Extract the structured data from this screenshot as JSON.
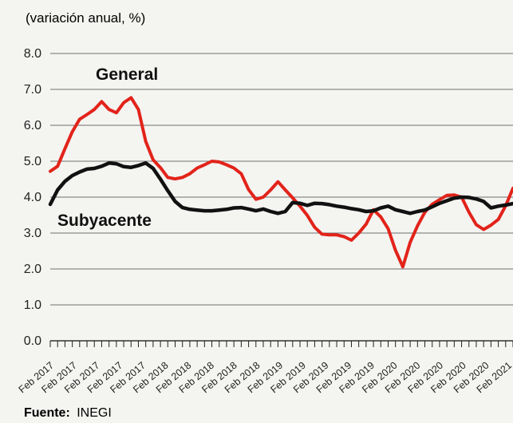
{
  "chart_data": {
    "type": "line",
    "subtitle": "(variación anual, %)",
    "ylim": [
      0,
      8
    ],
    "y_ticks": [
      "0.0",
      "1.0",
      "2.0",
      "3.0",
      "4.0",
      "5.0",
      "6.0",
      "7.0",
      "8.0"
    ],
    "grid": "horizontal",
    "x_tick_labels": [
      "Feb 2017",
      "Feb 2017",
      "Feb 2017",
      "Feb 2017",
      "Feb 2017",
      "Feb 2018",
      "Feb 2018",
      "Feb 2018",
      "Feb 2018",
      "Feb 2018",
      "Feb 2019",
      "Feb 2019",
      "Feb 2019",
      "Feb 2019",
      "Feb 2019",
      "Feb 2020",
      "Feb 2020",
      "Feb 2020",
      "Feb 2020",
      "Feb 2020",
      "Feb 2021"
    ],
    "series": [
      {
        "name": "General",
        "color": "#e2231a",
        "values": [
          4.72,
          4.86,
          5.35,
          5.82,
          6.17,
          6.3,
          6.44,
          6.66,
          6.44,
          6.35,
          6.63,
          6.77,
          6.44,
          5.55,
          5.04,
          4.82,
          4.55,
          4.51,
          4.55,
          4.65,
          4.81,
          4.9,
          5.0,
          4.98,
          4.9,
          4.81,
          4.65,
          4.21,
          3.94,
          4.0,
          4.2,
          4.43,
          4.2,
          3.98,
          3.75,
          3.49,
          3.16,
          2.97,
          2.95,
          2.95,
          2.9,
          2.8,
          3.0,
          3.25,
          3.65,
          3.45,
          3.12,
          2.52,
          2.06,
          2.74,
          3.2,
          3.58,
          3.8,
          3.93,
          4.05,
          4.06,
          4.0,
          3.58,
          3.23,
          3.1,
          3.22,
          3.38,
          3.76,
          4.25
        ]
      },
      {
        "name": "Subyacente",
        "color": "#111111",
        "values": [
          3.8,
          4.2,
          4.44,
          4.6,
          4.7,
          4.78,
          4.8,
          4.86,
          4.95,
          4.93,
          4.85,
          4.83,
          4.88,
          4.95,
          4.8,
          4.5,
          4.18,
          3.88,
          3.71,
          3.66,
          3.64,
          3.62,
          3.62,
          3.64,
          3.66,
          3.7,
          3.71,
          3.67,
          3.62,
          3.67,
          3.6,
          3.55,
          3.6,
          3.85,
          3.83,
          3.77,
          3.83,
          3.82,
          3.79,
          3.75,
          3.72,
          3.68,
          3.65,
          3.6,
          3.62,
          3.7,
          3.75,
          3.65,
          3.6,
          3.55,
          3.6,
          3.64,
          3.73,
          3.83,
          3.9,
          3.97,
          4.0,
          3.99,
          3.95,
          3.88,
          3.7,
          3.75,
          3.78,
          3.82
        ]
      }
    ],
    "series_labels": [
      {
        "series": "General",
        "text": "General"
      },
      {
        "series": "Subyacente",
        "text": "Subyacente"
      }
    ],
    "source_label": "Fuente:",
    "source_value": "INEGI"
  }
}
